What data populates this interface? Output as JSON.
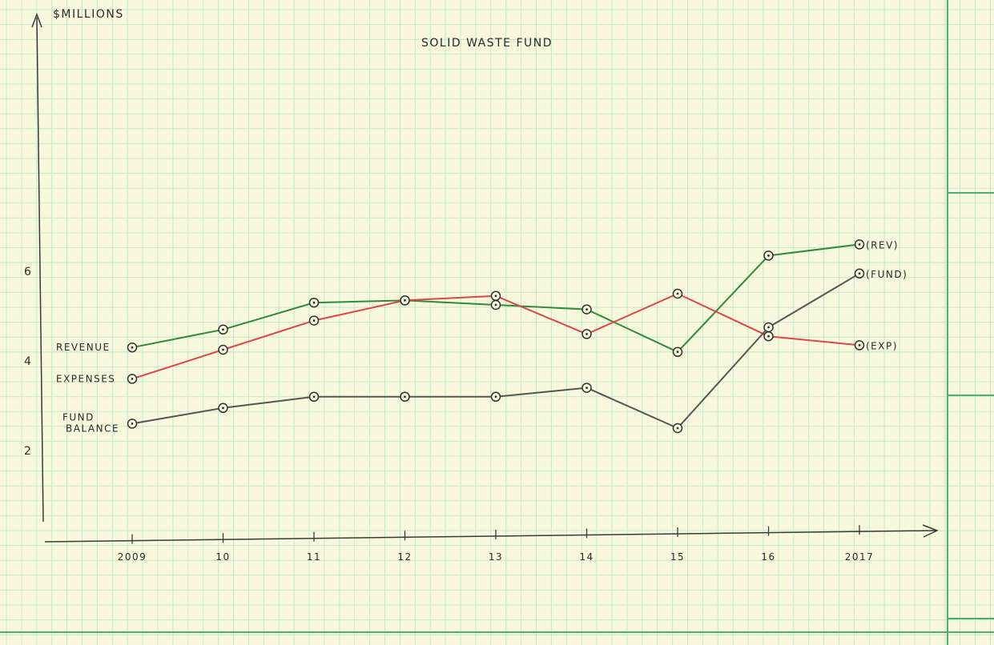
{
  "chart_data": {
    "type": "line",
    "title": "SOLID WASTE FUND",
    "ylabel": "$MILLIONS",
    "xlabel": "",
    "categories": [
      "2009",
      "10",
      "11",
      "12",
      "13",
      "14",
      "15",
      "16",
      "2017"
    ],
    "yticks": [
      "2",
      "4",
      "6"
    ],
    "ylim": [
      0,
      11
    ],
    "grid": true,
    "series": [
      {
        "name": "REVENUE",
        "end_label": "(REV)",
        "color": "#2e8b3a",
        "values": [
          4.3,
          4.7,
          5.3,
          5.35,
          5.25,
          5.15,
          4.2,
          6.35,
          6.6
        ]
      },
      {
        "name": "EXPENSES",
        "end_label": "(EXP)",
        "color": "#e0454a",
        "values": [
          3.6,
          4.25,
          4.9,
          5.35,
          5.45,
          4.6,
          5.5,
          4.55,
          4.35
        ]
      },
      {
        "name": "FUND BALANCE",
        "end_label": "(FUND)",
        "color": "#555555",
        "values": [
          2.6,
          2.95,
          3.2,
          3.2,
          3.2,
          3.4,
          2.5,
          4.75,
          5.95
        ]
      }
    ]
  }
}
